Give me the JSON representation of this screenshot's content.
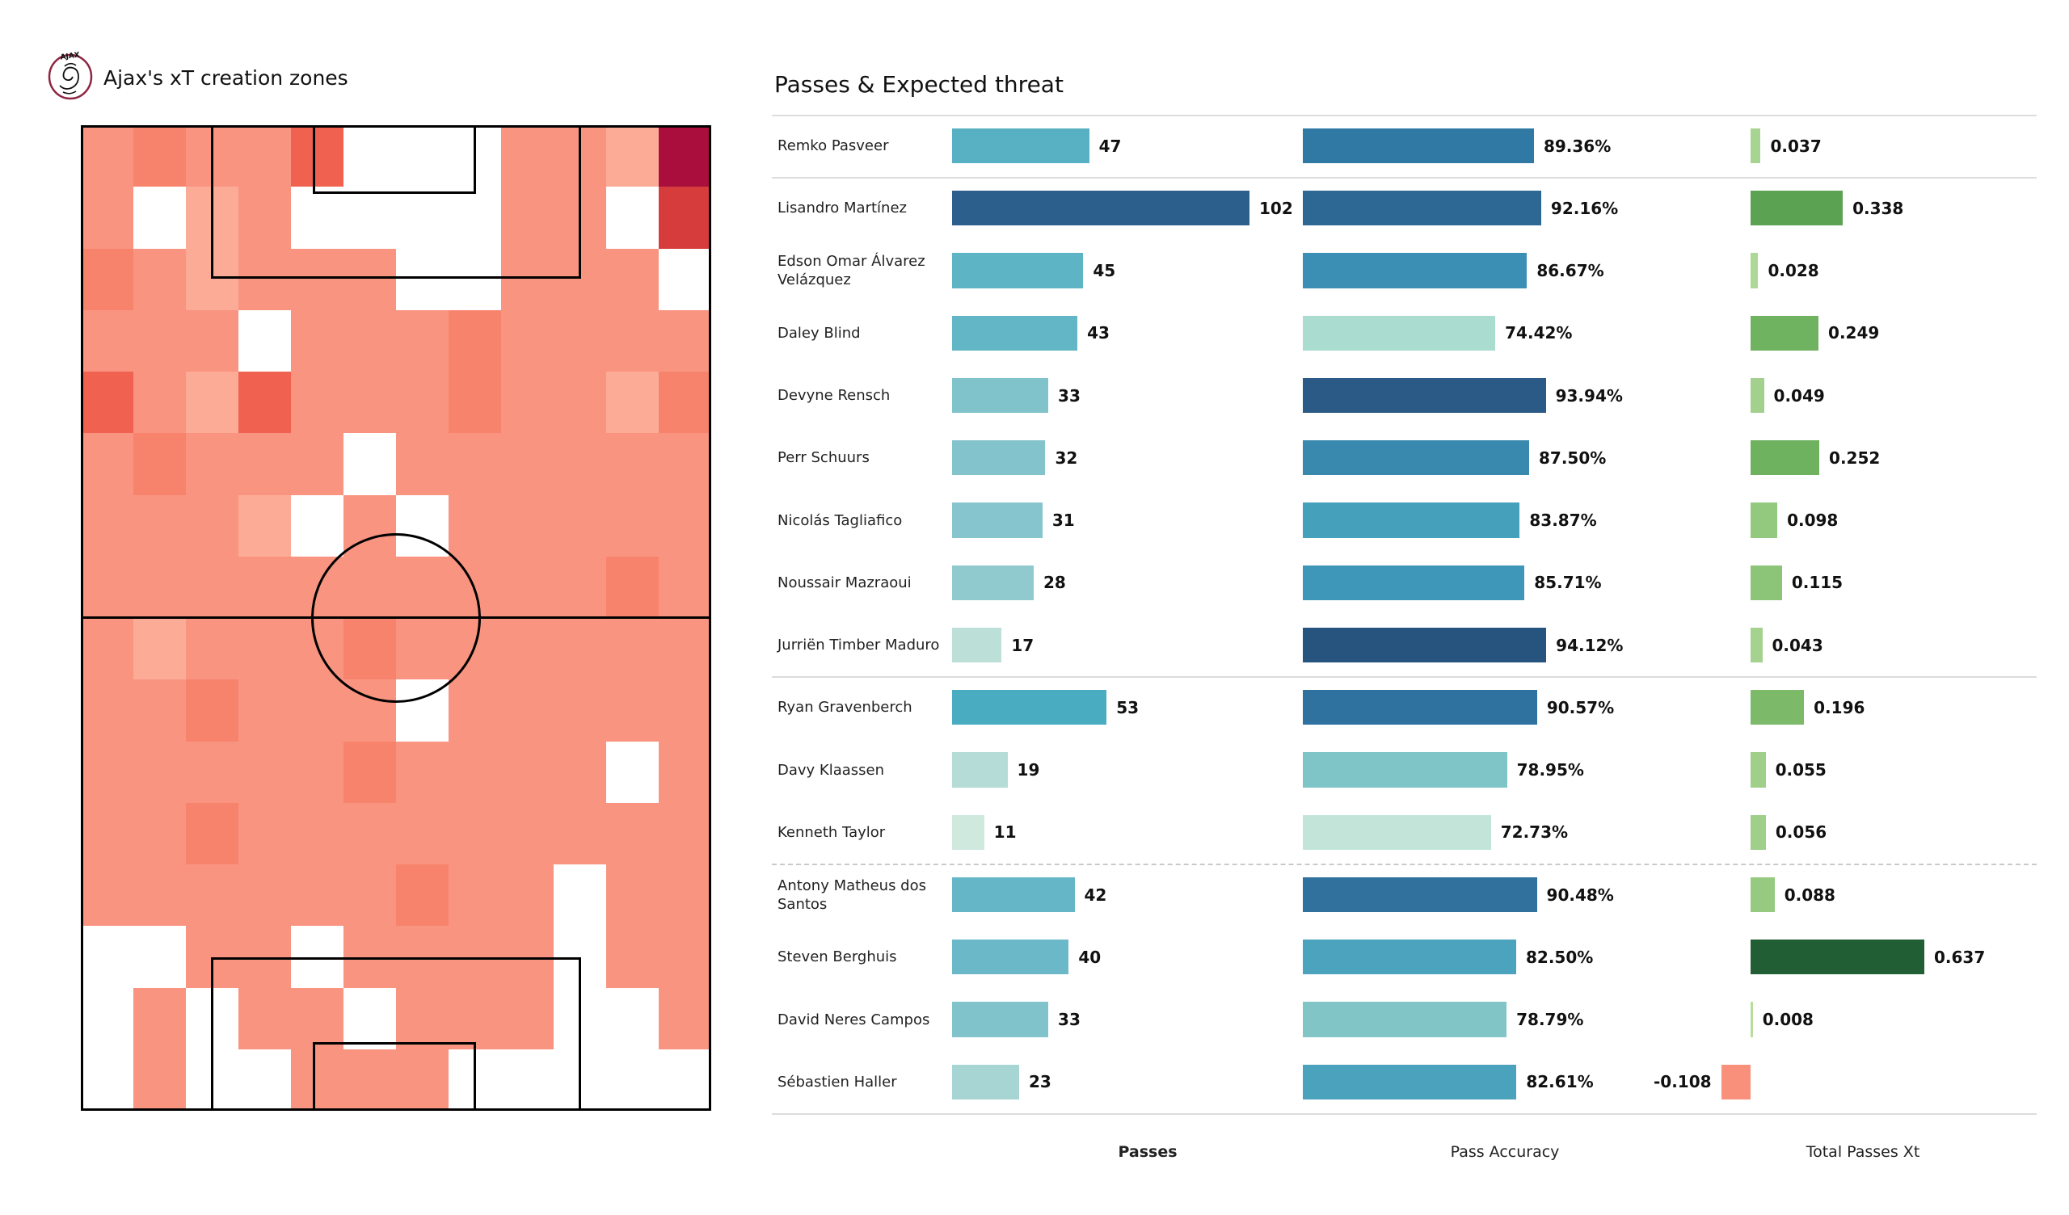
{
  "logo": {
    "club": "AJAX"
  },
  "pitch_panel": {
    "title": "Ajax's xT creation zones"
  },
  "table_panel": {
    "title": "Passes & Expected threat",
    "axis_labels": {
      "passes": "Passes",
      "accuracy": "Pass Accuracy",
      "xt": "Total Passes Xt"
    }
  },
  "players": [
    {
      "name": "Remko Pasveer",
      "passes": 47,
      "accuracy_pct": 89.36,
      "xt": 0.037,
      "passes_color": "#58b1c3",
      "accuracy_color": "#3079a5",
      "xt_color": "#a8d492"
    },
    {
      "name": "Lisandro Martínez",
      "passes": 102,
      "accuracy_pct": 92.16,
      "xt": 0.338,
      "passes_color": "#2d5f8d",
      "accuracy_color": "#2d6794",
      "xt_color": "#5ca253"
    },
    {
      "name": "Edson Omar Álvarez Velázquez",
      "passes": 45,
      "accuracy_pct": 86.67,
      "xt": 0.028,
      "passes_color": "#5db4c5",
      "accuracy_color": "#3b8fb4",
      "xt_color": "#add896"
    },
    {
      "name": "Daley Blind",
      "passes": 43,
      "accuracy_pct": 74.42,
      "xt": 0.249,
      "passes_color": "#62b6c6",
      "accuracy_color": "#abdcd0",
      "xt_color": "#6fb260"
    },
    {
      "name": "Devyne Rensch",
      "passes": 33,
      "accuracy_pct": 93.94,
      "xt": 0.049,
      "passes_color": "#80c3cb",
      "accuracy_color": "#2a5a85",
      "xt_color": "#a3d18d"
    },
    {
      "name": "Perr Schuurs",
      "passes": 32,
      "accuracy_pct": 87.5,
      "xt": 0.252,
      "passes_color": "#83c4cc",
      "accuracy_color": "#3989ae",
      "xt_color": "#6eb15f"
    },
    {
      "name": "Nicolás Tagliafico",
      "passes": 31,
      "accuracy_pct": 83.87,
      "xt": 0.098,
      "passes_color": "#86c5cd",
      "accuracy_color": "#45a0bc",
      "xt_color": "#93c97f"
    },
    {
      "name": "Noussair Mazraoui",
      "passes": 28,
      "accuracy_pct": 85.71,
      "xt": 0.115,
      "passes_color": "#90cacf",
      "accuracy_color": "#3e96b8",
      "xt_color": "#8cc578"
    },
    {
      "name": "Jurriën Timber Maduro",
      "passes": 17,
      "accuracy_pct": 94.12,
      "xt": 0.043,
      "passes_color": "#bcdfd8",
      "accuracy_color": "#27547e",
      "xt_color": "#a5d28f"
    },
    {
      "name": "Ryan Gravenberch",
      "passes": 53,
      "accuracy_pct": 90.57,
      "xt": 0.196,
      "passes_color": "#4aacc0",
      "accuracy_color": "#2f729f",
      "xt_color": "#7cba6a"
    },
    {
      "name": "Davy Klaassen",
      "passes": 19,
      "accuracy_pct": 78.95,
      "xt": 0.055,
      "passes_color": "#b5dcd6",
      "accuracy_color": "#7fc4c6",
      "xt_color": "#a0cf8a"
    },
    {
      "name": "Kenneth Taylor",
      "passes": 11,
      "accuracy_pct": 72.73,
      "xt": 0.056,
      "passes_color": "#cfe9de",
      "accuracy_color": "#c3e5d9",
      "xt_color": "#a0cf8a"
    },
    {
      "name": "Antony Matheus dos Santos",
      "passes": 42,
      "accuracy_pct": 90.48,
      "xt": 0.088,
      "passes_color": "#65b7c7",
      "accuracy_color": "#30719e",
      "xt_color": "#96ca81"
    },
    {
      "name": "Steven Berghuis",
      "passes": 40,
      "accuracy_pct": 82.5,
      "xt": 0.637,
      "passes_color": "#6bb9c8",
      "accuracy_color": "#4ba3be",
      "xt_color": "#215e33"
    },
    {
      "name": "David Neres Campos",
      "passes": 33,
      "accuracy_pct": 78.79,
      "xt": 0.008,
      "passes_color": "#80c3cb",
      "accuracy_color": "#81c5c7",
      "xt_color": "#b7dd9c"
    },
    {
      "name": "Sébastien Haller",
      "passes": 23,
      "accuracy_pct": 82.61,
      "xt": -0.108,
      "passes_color": "#a6d5d3",
      "accuracy_color": "#4aa2bd",
      "xt_color": "#f8907b"
    }
  ],
  "groups": {
    "solid_separators_after_row": [
      0,
      8
    ],
    "dashed_separators_after_row": [
      11
    ]
  },
  "heatmap_palette": {
    "0": "#ffffff",
    "1": "#fcab97",
    "2": "#f99481",
    "3": "#f8836d",
    "4": "#f1614f",
    "5": "#d63c3c",
    "6": "#a90e3d"
  },
  "chart_data": [
    {
      "type": "bar",
      "orientation": "horizontal",
      "title": "Passes & Expected threat",
      "categories": [
        "Remko Pasveer",
        "Lisandro Martínez",
        "Edson Omar Álvarez Velázquez",
        "Daley Blind",
        "Devyne Rensch",
        "Perr Schuurs",
        "Nicolás Tagliafico",
        "Noussair Mazraoui",
        "Jurriën Timber Maduro",
        "Ryan Gravenberch",
        "Davy Klaassen",
        "Kenneth Taylor",
        "Antony Matheus dos Santos",
        "Steven Berghuis",
        "David Neres Campos",
        "Sébastien Haller"
      ],
      "series": [
        {
          "name": "Passes",
          "values": [
            47,
            102,
            45,
            43,
            33,
            32,
            31,
            28,
            17,
            53,
            19,
            11,
            42,
            40,
            33,
            23
          ]
        },
        {
          "name": "Pass Accuracy",
          "unit": "%",
          "values": [
            89.36,
            92.16,
            86.67,
            74.42,
            93.94,
            87.5,
            83.87,
            85.71,
            94.12,
            90.57,
            78.95,
            72.73,
            90.48,
            82.5,
            78.79,
            82.61
          ]
        },
        {
          "name": "Total Passes Xt",
          "values": [
            0.037,
            0.338,
            0.028,
            0.249,
            0.049,
            0.252,
            0.098,
            0.115,
            0.043,
            0.196,
            0.055,
            0.056,
            0.088,
            0.637,
            0.008,
            -0.108
          ]
        }
      ],
      "value_ranges": {
        "passes_max": 102,
        "accuracy_max": 100,
        "xt_max": 0.637
      },
      "legend_position": "none",
      "grid": false,
      "group_boundaries_after": [
        "Remko Pasveer",
        "Jurriën Timber Maduro",
        "Kenneth Taylor"
      ]
    },
    {
      "type": "heatmap",
      "title": "Ajax's xT creation zones",
      "description": "Football pitch (portrait, attacking top) divided into a 12x16 zone grid; cell shade encodes relative xT created from that zone (0=none/white, 6=highest/crimson).",
      "grid_cols": 12,
      "grid_rows": 16,
      "values": [
        [
          2,
          3,
          2,
          2,
          4,
          0,
          0,
          0,
          2,
          2,
          1,
          6
        ],
        [
          2,
          0,
          1,
          2,
          0,
          0,
          0,
          0,
          2,
          2,
          0,
          5
        ],
        [
          3,
          2,
          1,
          2,
          2,
          2,
          0,
          0,
          2,
          2,
          2,
          0
        ],
        [
          2,
          2,
          2,
          0,
          2,
          2,
          2,
          3,
          2,
          2,
          2,
          2
        ],
        [
          4,
          2,
          1,
          4,
          2,
          2,
          2,
          3,
          2,
          2,
          1,
          3
        ],
        [
          2,
          3,
          2,
          2,
          2,
          0,
          2,
          2,
          2,
          2,
          2,
          2
        ],
        [
          2,
          2,
          2,
          1,
          0,
          2,
          0,
          2,
          2,
          2,
          2,
          2
        ],
        [
          2,
          2,
          2,
          2,
          2,
          2,
          2,
          2,
          2,
          2,
          3,
          2
        ],
        [
          2,
          1,
          2,
          2,
          2,
          3,
          2,
          2,
          2,
          2,
          2,
          2
        ],
        [
          2,
          2,
          3,
          2,
          2,
          2,
          0,
          2,
          2,
          2,
          2,
          2
        ],
        [
          2,
          2,
          2,
          2,
          2,
          3,
          2,
          2,
          2,
          2,
          0,
          2
        ],
        [
          2,
          2,
          3,
          2,
          2,
          2,
          2,
          2,
          2,
          2,
          2,
          2
        ],
        [
          2,
          2,
          2,
          2,
          2,
          2,
          3,
          2,
          2,
          0,
          2,
          2
        ],
        [
          0,
          0,
          2,
          2,
          0,
          2,
          2,
          2,
          2,
          0,
          2,
          2
        ],
        [
          0,
          2,
          0,
          2,
          2,
          0,
          2,
          2,
          2,
          0,
          0,
          2
        ],
        [
          0,
          2,
          0,
          0,
          2,
          2,
          2,
          0,
          0,
          0,
          0,
          0
        ]
      ],
      "level_colors": {
        "0": "#ffffff",
        "1": "#fcab97",
        "2": "#f99481",
        "3": "#f8836d",
        "4": "#f1614f",
        "5": "#d63c3c",
        "6": "#a90e3d"
      }
    }
  ]
}
